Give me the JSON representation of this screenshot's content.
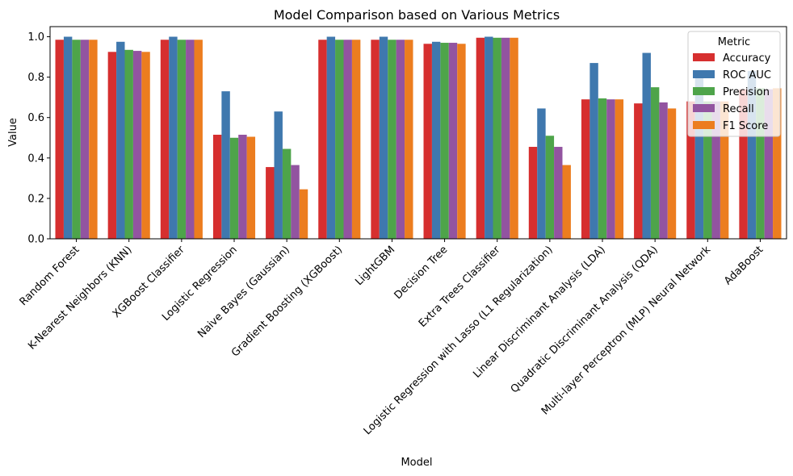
{
  "chart_data": {
    "type": "bar",
    "title": "Model Comparison based on Various Metrics",
    "xlabel": "Model",
    "ylabel": "Value",
    "ylim": [
      0,
      1.05
    ],
    "yticks": [
      "0.0",
      "0.2",
      "0.4",
      "0.6",
      "0.8",
      "1.0"
    ],
    "grid": false,
    "legend": {
      "title": "Metric",
      "placement": "top-right"
    },
    "categories": [
      "Random Forest",
      "K-Nearest Neighbors (KNN)",
      "XGBoost Classifier",
      "Logistic Regression",
      "Naive Bayes (Gaussian)",
      "Gradient Boosting (XGBoost)",
      "LightGBM",
      "Decision Tree",
      "Extra Trees Classifier",
      "Logistic Regression with Lasso (L1 Regularization)",
      "Linear Discriminant Analysis (LDA)",
      "Quadratic Discriminant Analysis (QDA)",
      "Multi-layer Perceptron (MLP) Neural Network",
      "AdaBoost"
    ],
    "series": [
      {
        "name": "Accuracy",
        "color": "#d62f2f",
        "values": [
          0.985,
          0.925,
          0.985,
          0.515,
          0.355,
          0.985,
          0.985,
          0.965,
          0.995,
          0.455,
          0.69,
          0.67,
          0.68,
          0.74
        ]
      },
      {
        "name": "ROC AUC",
        "color": "#3f78ae",
        "values": [
          1.0,
          0.975,
          1.0,
          0.73,
          0.63,
          1.0,
          1.0,
          0.975,
          1.0,
          0.645,
          0.87,
          0.92,
          0.83,
          0.83
        ]
      },
      {
        "name": "Precision",
        "color": "#4ea44a",
        "values": [
          0.985,
          0.935,
          0.985,
          0.5,
          0.445,
          0.985,
          0.985,
          0.97,
          0.995,
          0.51,
          0.695,
          0.75,
          0.68,
          0.745
        ]
      },
      {
        "name": "Recall",
        "color": "#9254a0",
        "values": [
          0.985,
          0.93,
          0.985,
          0.515,
          0.365,
          0.985,
          0.985,
          0.97,
          0.995,
          0.455,
          0.69,
          0.675,
          0.68,
          0.74
        ]
      },
      {
        "name": "F1 Score",
        "color": "#ec7d1f",
        "values": [
          0.985,
          0.925,
          0.985,
          0.505,
          0.245,
          0.985,
          0.985,
          0.965,
          0.995,
          0.365,
          0.69,
          0.645,
          0.68,
          0.745
        ]
      }
    ]
  }
}
